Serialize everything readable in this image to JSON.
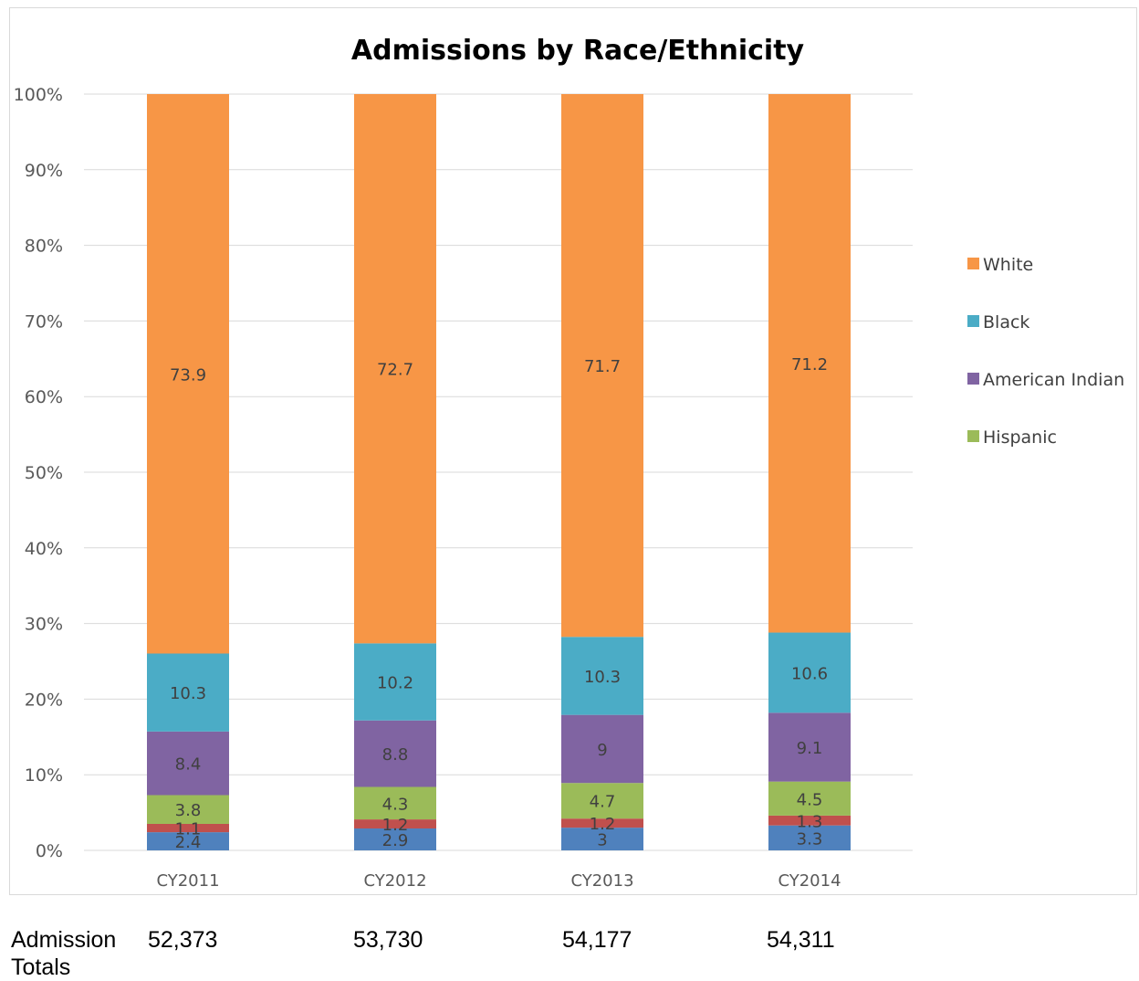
{
  "chart_data": {
    "type": "bar",
    "stacked": "percent",
    "title": "Admissions by Race/Ethnicity",
    "categories": [
      "CY2011",
      "CY2012",
      "CY2013",
      "CY2014"
    ],
    "ylim": [
      0,
      100
    ],
    "yticks": [
      "0%",
      "10%",
      "20%",
      "30%",
      "40%",
      "50%",
      "60%",
      "70%",
      "80%",
      "90%",
      "100%"
    ],
    "grid": true,
    "legend_position": "right",
    "series": [
      {
        "key": "asian",
        "color": "#4f81bd",
        "values": [
          2.4,
          2.9,
          3,
          3.3
        ],
        "labels": [
          "2.4",
          "2.9",
          "3",
          "3.3"
        ]
      },
      {
        "key": "other",
        "color": "#c0504d",
        "values": [
          1.1,
          1.2,
          1.2,
          1.3
        ],
        "labels": [
          "1.1",
          "1.2",
          "1.2",
          "1.3"
        ]
      },
      {
        "name": "Hispanic",
        "color": "#9bbb59",
        "values": [
          3.8,
          4.3,
          4.7,
          4.5
        ],
        "labels": [
          "3.8",
          "4.3",
          "4.7",
          "4.5"
        ]
      },
      {
        "name": "American Indian",
        "color": "#8064a2",
        "values": [
          8.4,
          8.8,
          9,
          9.1
        ],
        "labels": [
          "8.4",
          "8.8",
          "9",
          "9.1"
        ]
      },
      {
        "name": "Black",
        "color": "#4bacc6",
        "values": [
          10.3,
          10.2,
          10.3,
          10.6
        ],
        "labels": [
          "10.3",
          "10.2",
          "10.3",
          "10.6"
        ]
      },
      {
        "name": "White",
        "color": "#f79646",
        "values": [
          73.9,
          72.7,
          71.7,
          71.2
        ],
        "labels": [
          "73.9",
          "72.7",
          "71.7",
          "71.2"
        ]
      }
    ],
    "legend": [
      "White",
      "Black",
      "American Indian",
      "Hispanic"
    ]
  },
  "totals": {
    "label": "Admission Totals",
    "values": [
      "52,373",
      "53,730",
      "54,177",
      "54,311"
    ]
  }
}
